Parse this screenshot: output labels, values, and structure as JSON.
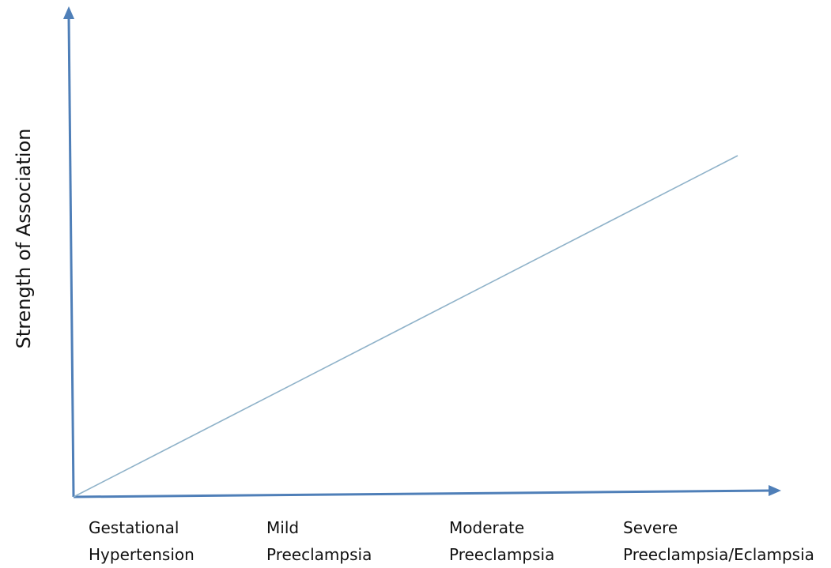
{
  "axis_color": "#4f7fb8",
  "line_color": "#8fb2c9",
  "y_title": "Strength of Association",
  "categories": [
    {
      "line1": "Gestational",
      "line2": "Hypertension"
    },
    {
      "line1": "Mild",
      "line2": "Preeclampsia"
    },
    {
      "line1": "Moderate",
      "line2": "Preeclampsia"
    },
    {
      "line1": "Severe",
      "line2": "Preeclampsia/Eclampsia"
    }
  ],
  "chart_data": {
    "type": "line",
    "trend": "increasing",
    "grid": false,
    "ylabel": "Strength of Association"
  }
}
